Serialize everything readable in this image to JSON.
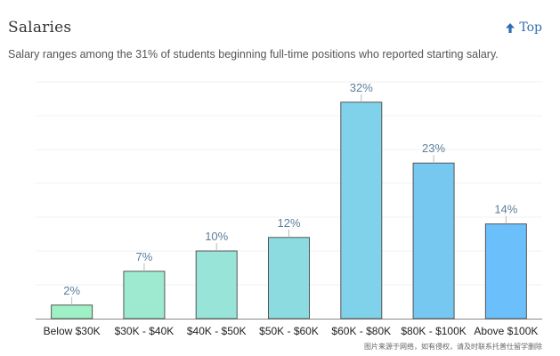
{
  "header": {
    "title": "Salaries",
    "top_link": "Top",
    "subtitle": "Salary ranges among the 31% of students beginning full-time positions who reported starting salary."
  },
  "icons": {
    "top_arrow": "arrow-up-icon"
  },
  "colors": {
    "top_link": "#2f6db3",
    "bar_border": "#555555",
    "value_label": "#5b7f9a"
  },
  "chart_data": {
    "type": "bar",
    "categories": [
      "Below $30K",
      "$30K - $40K",
      "$40K - $50K",
      "$50K - $60K",
      "$60K - $80K",
      "$80K - $100K",
      "Above $100K"
    ],
    "values": [
      2,
      7,
      10,
      12,
      32,
      23,
      14
    ],
    "data_labels": [
      "2%",
      "7%",
      "10%",
      "12%",
      "32%",
      "23%",
      "14%"
    ],
    "bar_colors": [
      "#9ff0c4",
      "#9eead0",
      "#98e4d8",
      "#8cdbe0",
      "#80d1ea",
      "#76c8f0",
      "#6bbffa"
    ],
    "ylim": [
      0,
      35
    ],
    "grid": true,
    "legend": "none"
  },
  "watermark": "图片来源于网络，如有侵权，请及时联系托普仕留学删除"
}
